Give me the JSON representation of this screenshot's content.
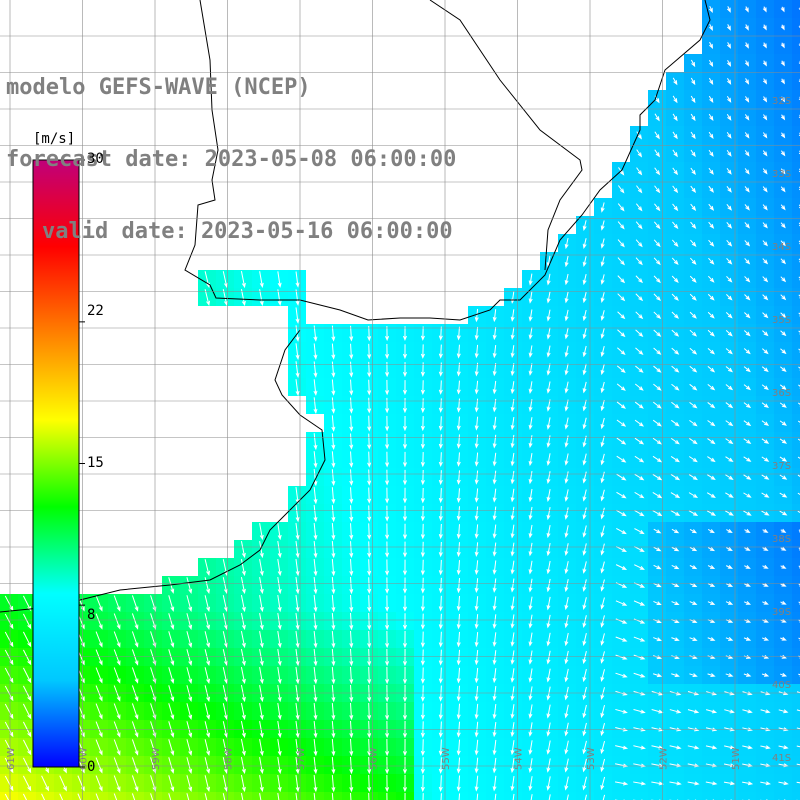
{
  "title": {
    "line1": "modelo GEFS-WAVE (NCEP)",
    "line2": "forecast date: 2023-05-08 06:00:00",
    "line3": "valid date: 2023-05-16 06:00:00"
  },
  "colorbar": {
    "unit": "[m/s]",
    "ticks": [
      "30",
      "22",
      "15",
      "8",
      "0"
    ],
    "tick_values": [
      30,
      22,
      15,
      8,
      0
    ],
    "min": 0,
    "max": 30,
    "colors": [
      "#0000ff",
      "#00c8ff",
      "#00ffff",
      "#00ff00",
      "#ffff00",
      "#ff8000",
      "#ff0000",
      "#c0007a"
    ]
  },
  "latitude_labels": [
    "32S",
    "33S",
    "34S",
    "35S",
    "36S",
    "37S",
    "38S",
    "39S",
    "40S",
    "41S"
  ],
  "longitude_labels": [
    "61W",
    "60W",
    "59W",
    "58W",
    "57W",
    "56W",
    "55W",
    "54W",
    "53W",
    "52W",
    "51W"
  ],
  "colors": {
    "land": "#ffffff",
    "coast": "#000000",
    "grid": "#8c8c8c",
    "arrows": "#ffffff",
    "label_text": "#808080"
  }
}
